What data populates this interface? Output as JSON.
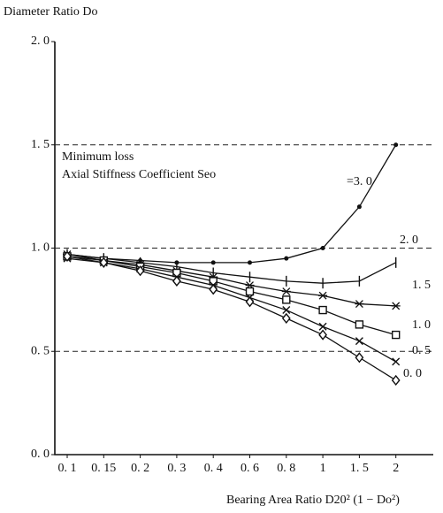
{
  "chart_data": {
    "type": "line",
    "y_label": "Diameter Ratio Do",
    "x_label": "Bearing Area Ratio D20² (1 − Do²)",
    "annotations": [
      "Minimum loss",
      "Axial Stiffness Coefficient Seo"
    ],
    "categories": [
      "0. 1",
      "0. 15",
      "0. 2",
      "0. 3",
      "0. 4",
      "0. 6",
      "0. 8",
      "1",
      "1. 5",
      "2"
    ],
    "ylim": [
      0,
      2
    ],
    "yticks": [
      {
        "value": 0,
        "label": "0. 0"
      },
      {
        "value": 0.5,
        "label": "0. 5"
      },
      {
        "value": 1,
        "label": "1. 0"
      },
      {
        "value": 1.5,
        "label": "1. 5"
      },
      {
        "value": 2,
        "label": "2. 0"
      }
    ],
    "grid": "dashed",
    "series": [
      {
        "name": "=3. 0",
        "color": "#111111",
        "marker": "dot",
        "values": [
          0.97,
          0.95,
          0.94,
          0.93,
          0.93,
          0.93,
          0.95,
          1.0,
          1.2,
          1.5
        ]
      },
      {
        "name": "2. 0",
        "color": "#111111",
        "marker": "tick",
        "values": [
          0.97,
          0.95,
          0.93,
          0.91,
          0.88,
          0.86,
          0.84,
          0.83,
          0.84,
          0.93
        ]
      },
      {
        "name": "1. 5",
        "color": "#111111",
        "marker": "asterisk",
        "values": [
          0.97,
          0.94,
          0.92,
          0.89,
          0.86,
          0.82,
          0.79,
          0.77,
          0.73,
          0.72
        ]
      },
      {
        "name": "1. 0",
        "color": "#111111",
        "marker": "square",
        "values": [
          0.96,
          0.94,
          0.91,
          0.88,
          0.84,
          0.79,
          0.75,
          0.7,
          0.63,
          0.58
        ]
      },
      {
        "name": "0. 5",
        "color": "#111111",
        "marker": "cross",
        "values": [
          0.95,
          0.93,
          0.9,
          0.86,
          0.82,
          0.76,
          0.7,
          0.62,
          0.55,
          0.45
        ]
      },
      {
        "name": "0. 0",
        "color": "#111111",
        "marker": "diamond",
        "values": [
          0.96,
          0.93,
          0.89,
          0.84,
          0.8,
          0.74,
          0.66,
          0.58,
          0.47,
          0.36
        ]
      }
    ]
  }
}
